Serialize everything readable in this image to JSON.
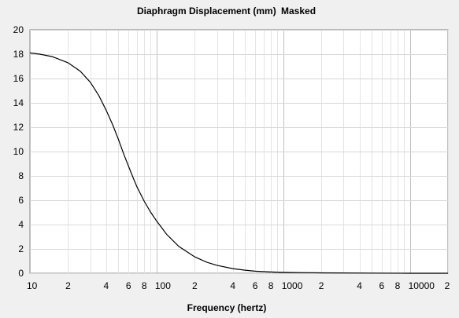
{
  "window": {
    "title_left": "Diaphragm Displacement (mm)",
    "title_right": "Masked"
  },
  "chart_data": {
    "type": "line",
    "title": "Diaphragm Displacement (mm)   Masked",
    "xlabel": "Frequency (hertz)",
    "ylabel": "",
    "x_scale": "log",
    "xlim": [
      10,
      20000
    ],
    "ylim": [
      0,
      20
    ],
    "grid": true,
    "y_ticks": [
      0,
      2,
      4,
      6,
      8,
      10,
      12,
      14,
      16,
      18,
      20
    ],
    "y_tick_labels": [
      "0",
      "2",
      "4",
      "6",
      "8",
      "10",
      "12",
      "14",
      "16",
      "18",
      "20"
    ],
    "x_ticks": [
      10,
      20,
      40,
      60,
      80,
      100,
      200,
      400,
      600,
      800,
      1000,
      2000,
      4000,
      6000,
      8000,
      10000,
      20000
    ],
    "x_tick_labels": [
      "10",
      "2",
      "4",
      "6",
      "8",
      "100",
      "2",
      "4",
      "6",
      "8",
      "1000",
      "2",
      "4",
      "6",
      "8",
      "10000",
      "2"
    ],
    "series": [
      {
        "color": "#000000",
        "x": [
          10,
          12,
          15,
          20,
          25,
          30,
          35,
          40,
          45,
          50,
          55,
          60,
          65,
          70,
          80,
          90,
          100,
          120,
          150,
          200,
          250,
          300,
          400,
          500,
          600,
          800,
          1000,
          2000,
          5000,
          10000,
          20000
        ],
        "y": [
          18.1,
          18.0,
          17.8,
          17.3,
          16.6,
          15.7,
          14.6,
          13.4,
          12.2,
          11.0,
          9.8,
          8.8,
          7.9,
          7.1,
          5.9,
          5.0,
          4.3,
          3.2,
          2.2,
          1.35,
          0.9,
          0.65,
          0.38,
          0.25,
          0.17,
          0.1,
          0.07,
          0.03,
          0.01,
          0.0,
          0.0
        ]
      }
    ]
  }
}
